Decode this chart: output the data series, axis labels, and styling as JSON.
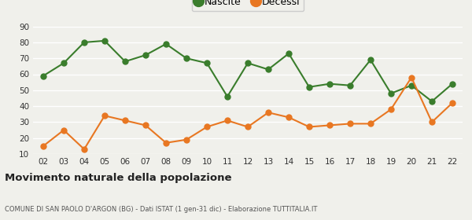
{
  "years": [
    "02",
    "03",
    "04",
    "05",
    "06",
    "07",
    "08",
    "09",
    "10",
    "11",
    "12",
    "13",
    "14",
    "15",
    "16",
    "17",
    "18",
    "19",
    "20",
    "21",
    "22"
  ],
  "nascite": [
    59,
    67,
    80,
    81,
    68,
    72,
    79,
    70,
    67,
    46,
    67,
    63,
    73,
    52,
    54,
    53,
    69,
    48,
    53,
    43,
    54
  ],
  "decessi": [
    15,
    25,
    13,
    34,
    31,
    28,
    17,
    19,
    27,
    31,
    27,
    36,
    33,
    27,
    28,
    29,
    29,
    38,
    58,
    30,
    42
  ],
  "nascite_color": "#3a7d2c",
  "decessi_color": "#e87722",
  "background_color": "#f0f0eb",
  "grid_color": "#ffffff",
  "ylim": [
    10,
    90
  ],
  "yticks": [
    10,
    20,
    30,
    40,
    50,
    60,
    70,
    80,
    90
  ],
  "title": "Movimento naturale della popolazione",
  "subtitle": "COMUNE DI SAN PAOLO D'ARGON (BG) - Dati ISTAT (1 gen-31 dic) - Elaborazione TUTTITALIA.IT",
  "legend_labels": [
    "Nascite",
    "Decessi"
  ],
  "marker_size": 5,
  "linewidth": 1.5
}
